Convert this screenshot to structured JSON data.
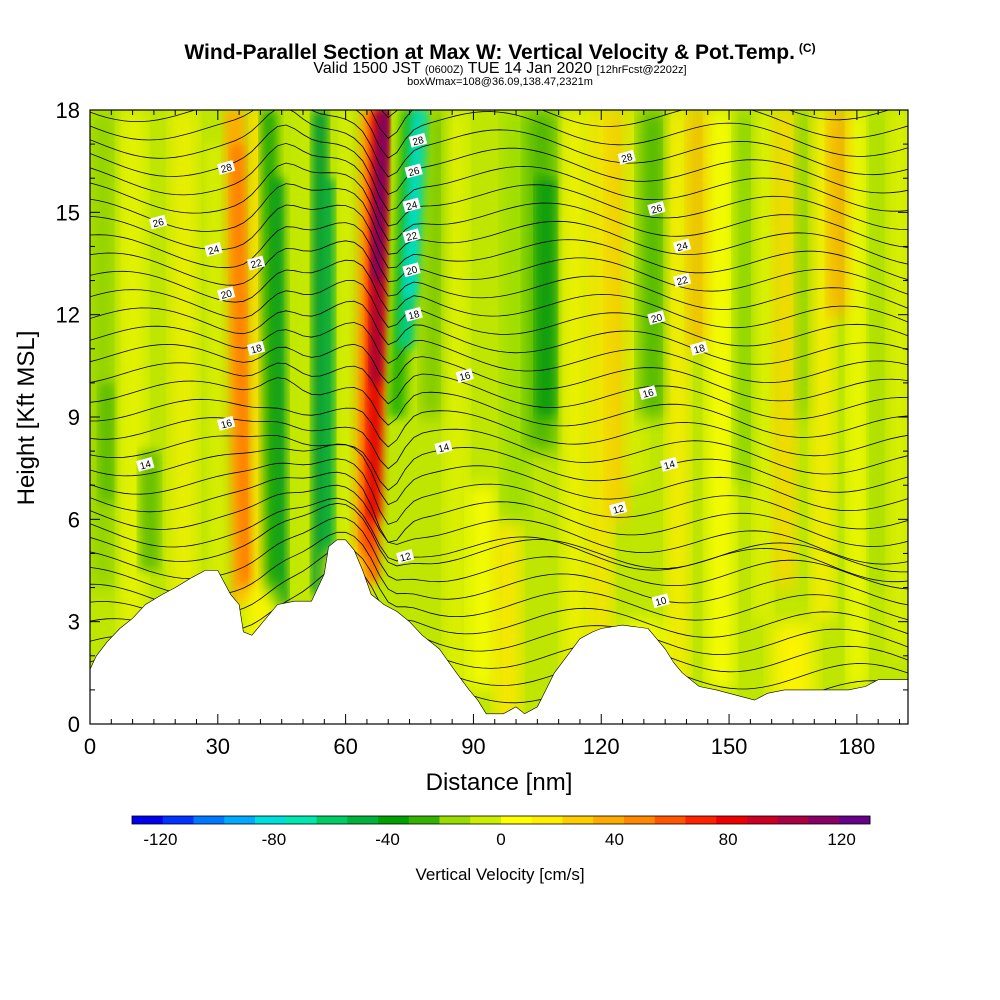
{
  "header": {
    "title": "Wind-Parallel Section at Max W: Vertical Velocity & Pot.Temp.",
    "copyright": "(C)",
    "subtitle_pre": "Valid 1500 JST",
    "subtitle_utc": "(0600Z)",
    "subtitle_date": "TUE 14 Jan 2020",
    "subtitle_fcst": "[12hrFcst@2202z]",
    "subtitle2": "boxWmax=108@36.09,138.47,2321m"
  },
  "chart_data": {
    "type": "contour-section",
    "xlabel": "Distance [nm]",
    "ylabel": "Height [Kft MSL]",
    "xlim": [
      0,
      192
    ],
    "ylim": [
      0,
      18
    ],
    "x_ticks": [
      0,
      30,
      60,
      90,
      120,
      150,
      180
    ],
    "x_tick_labels": [
      "0",
      "30",
      "60",
      "90",
      "120",
      "150",
      "180"
    ],
    "y_ticks": [
      0,
      3,
      6,
      9,
      12,
      15,
      18
    ],
    "y_tick_labels": [
      "0",
      "3",
      "6",
      "9",
      "12",
      "15",
      "18"
    ],
    "colorbar": {
      "title": "Vertical Velocity [cm/s]",
      "ticks": [
        "-120",
        "-80",
        "-40",
        "0",
        "40",
        "80",
        "120"
      ],
      "range": [
        -130,
        130
      ],
      "colors": [
        "#0000ee",
        "#0033ff",
        "#0077ff",
        "#00aaff",
        "#00dddd",
        "#00e8b0",
        "#00cc66",
        "#00b23c",
        "#00a000",
        "#33b300",
        "#99dd00",
        "#ccee00",
        "#ffff00",
        "#ffee00",
        "#ffcc00",
        "#ffaa00",
        "#ff8800",
        "#ff5500",
        "#ff2200",
        "#ee0000",
        "#cc0022",
        "#aa0044",
        "#880066",
        "#660088"
      ]
    },
    "terrain_kft": [
      [
        0,
        1.6
      ],
      [
        1.5,
        2.0
      ],
      [
        4,
        2.4
      ],
      [
        7,
        2.8
      ],
      [
        10,
        3.1
      ],
      [
        13,
        3.5
      ],
      [
        17,
        3.8
      ],
      [
        20,
        4.0
      ],
      [
        24,
        4.3
      ],
      [
        27,
        4.5
      ],
      [
        30,
        4.5
      ],
      [
        33,
        3.8
      ],
      [
        35,
        3.5
      ],
      [
        36,
        2.7
      ],
      [
        38,
        2.6
      ],
      [
        40,
        2.9
      ],
      [
        42,
        3.2
      ],
      [
        44,
        3.5
      ],
      [
        48,
        3.6
      ],
      [
        52,
        3.6
      ],
      [
        55,
        4.4
      ],
      [
        56,
        5.2
      ],
      [
        58,
        5.4
      ],
      [
        60,
        5.4
      ],
      [
        62,
        5.1
      ],
      [
        64,
        4.5
      ],
      [
        66,
        3.8
      ],
      [
        69,
        3.5
      ],
      [
        72,
        3.3
      ],
      [
        75,
        3.0
      ],
      [
        78,
        2.6
      ],
      [
        82,
        2.2
      ],
      [
        86,
        1.5
      ],
      [
        89,
        1.0
      ],
      [
        91,
        0.7
      ],
      [
        93,
        0.3
      ],
      [
        97,
        0.3
      ],
      [
        100,
        0.5
      ],
      [
        102,
        0.3
      ],
      [
        105,
        0.5
      ],
      [
        107,
        1.0
      ],
      [
        109,
        1.5
      ],
      [
        112,
        2.0
      ],
      [
        115,
        2.5
      ],
      [
        118,
        2.7
      ],
      [
        120,
        2.8
      ],
      [
        125,
        2.9
      ],
      [
        131,
        2.8
      ],
      [
        133,
        2.5
      ],
      [
        135,
        2.2
      ],
      [
        137,
        1.8
      ],
      [
        139,
        1.5
      ],
      [
        141,
        1.3
      ],
      [
        143,
        1.1
      ],
      [
        147,
        1.0
      ],
      [
        150,
        0.9
      ],
      [
        153,
        0.8
      ],
      [
        156,
        0.7
      ],
      [
        159,
        0.9
      ],
      [
        163,
        1.0
      ],
      [
        170,
        1.0
      ],
      [
        178,
        1.0
      ],
      [
        182,
        1.1
      ],
      [
        185,
        1.3
      ],
      [
        192,
        1.3
      ]
    ],
    "contour_labels": [
      {
        "label": "28",
        "x": 32,
        "y": 16.3
      },
      {
        "label": "26",
        "x": 16,
        "y": 14.7
      },
      {
        "label": "24",
        "x": 29,
        "y": 13.9
      },
      {
        "label": "22",
        "x": 39,
        "y": 13.5
      },
      {
        "label": "20",
        "x": 32,
        "y": 12.6
      },
      {
        "label": "18",
        "x": 39,
        "y": 11.0
      },
      {
        "label": "16",
        "x": 32,
        "y": 8.8
      },
      {
        "label": "14",
        "x": 13,
        "y": 7.6
      },
      {
        "label": "28",
        "x": 77,
        "y": 17.1
      },
      {
        "label": "26",
        "x": 76,
        "y": 16.2
      },
      {
        "label": "24",
        "x": 75.5,
        "y": 15.2
      },
      {
        "label": "22",
        "x": 75.5,
        "y": 14.3
      },
      {
        "label": "20",
        "x": 75.5,
        "y": 13.3
      },
      {
        "label": "18",
        "x": 76,
        "y": 12.0
      },
      {
        "label": "16",
        "x": 88,
        "y": 10.2
      },
      {
        "label": "14",
        "x": 83,
        "y": 8.1
      },
      {
        "label": "12",
        "x": 74,
        "y": 4.9
      },
      {
        "label": "28",
        "x": 126,
        "y": 16.6
      },
      {
        "label": "26",
        "x": 133,
        "y": 15.1
      },
      {
        "label": "24",
        "x": 139,
        "y": 14.0
      },
      {
        "label": "22",
        "x": 139,
        "y": 13.0
      },
      {
        "label": "20",
        "x": 133,
        "y": 11.9
      },
      {
        "label": "18",
        "x": 143,
        "y": 11.0
      },
      {
        "label": "16",
        "x": 131,
        "y": 9.7
      },
      {
        "label": "14",
        "x": 136,
        "y": 7.6
      },
      {
        "label": "12",
        "x": 124,
        "y": 6.3
      },
      {
        "label": "10",
        "x": 134,
        "y": 3.6
      }
    ]
  }
}
